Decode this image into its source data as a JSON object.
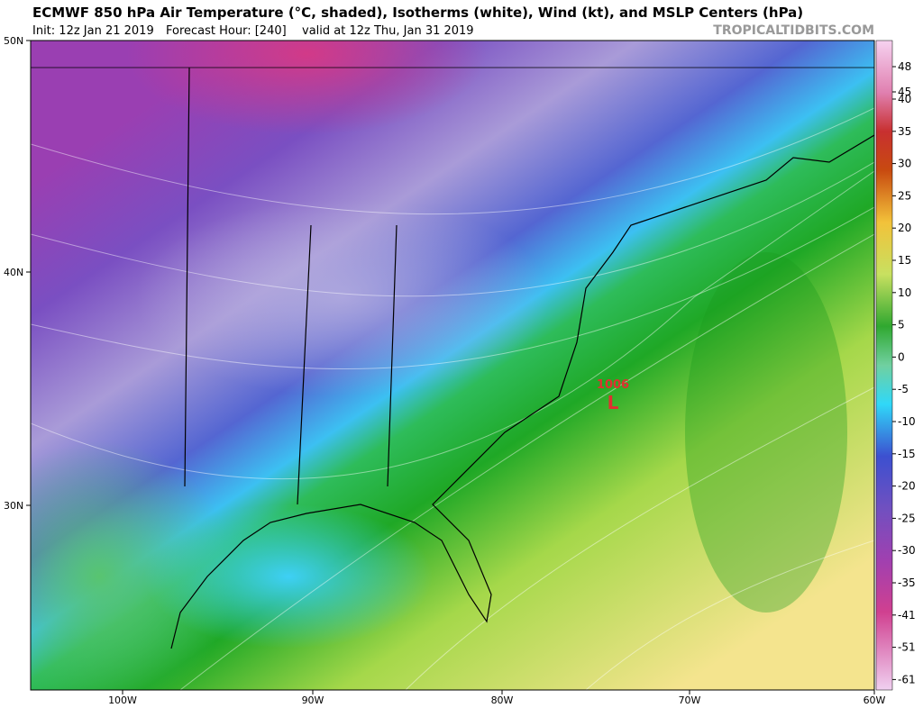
{
  "header": {
    "title": "ECMWF 850 hPa Air Temperature (°C, shaded), Isotherms (white), Wind (kt), and MSLP Centers (hPa)",
    "init": "Init: 12z Jan 21 2019",
    "forecast": "Forecast Hour: [240]",
    "valid": "valid at 12z Thu, Jan 31 2019",
    "site": "TROPICALTIDBITS.COM"
  },
  "map": {
    "lat_labels": [
      "50N",
      "40N",
      "30N"
    ],
    "lon_labels": [
      "100W",
      "90W",
      "80W",
      "70W",
      "60W"
    ],
    "pressure_center": {
      "value": "1006",
      "symbol": "L"
    }
  },
  "colorbar": {
    "labels": [
      "48",
      "45",
      "40",
      "35",
      "30",
      "25",
      "20",
      "15",
      "10",
      "5",
      "0",
      "-5",
      "-10",
      "-15",
      "-20",
      "-25",
      "-30",
      "-35",
      "-41",
      "-51",
      "-61"
    ]
  }
}
